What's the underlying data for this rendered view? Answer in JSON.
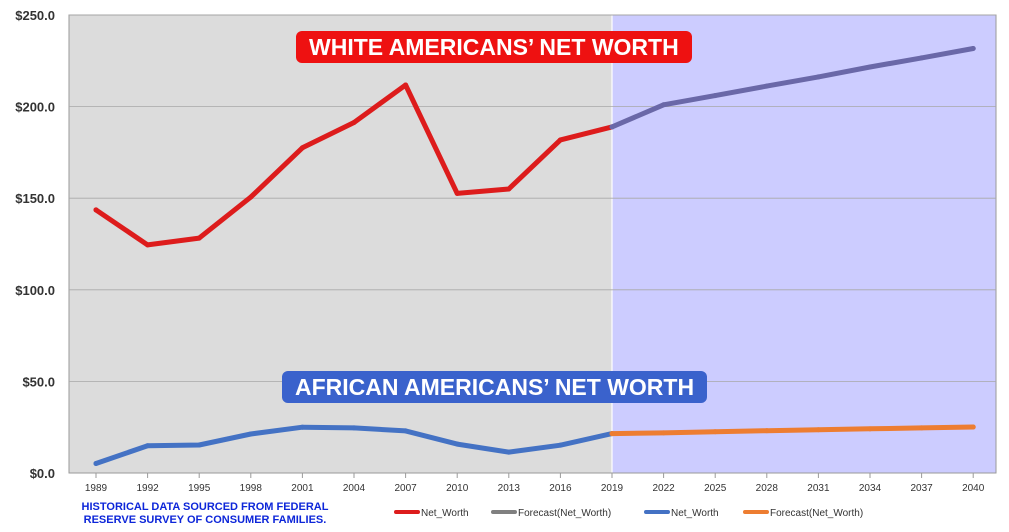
{
  "chart_data": {
    "type": "line",
    "title": "",
    "xlabel": "",
    "ylabel": "",
    "ylim": [
      0,
      250
    ],
    "y_ticks": [
      "$0.0",
      "$50.0",
      "$100.0",
      "$150.0",
      "$200.0",
      "$250.0"
    ],
    "x_ticks": [
      "1989",
      "1992",
      "1995",
      "1998",
      "2001",
      "2004",
      "2007",
      "2010",
      "2013",
      "2016",
      "2019",
      "2022",
      "2025",
      "2028",
      "2031",
      "2034",
      "2037",
      "2040"
    ],
    "shading": [
      {
        "name": "historical",
        "from": "1989",
        "to": "2019",
        "color": "#dcdcdc"
      },
      {
        "name": "forecast",
        "from": "2019",
        "to": "2040",
        "color": "#ccccff"
      }
    ],
    "series": [
      {
        "name": "Net_Worth",
        "group": "white",
        "color": "#dd1c1c",
        "x": [
          "1989",
          "1992",
          "1995",
          "1998",
          "2001",
          "2004",
          "2007",
          "2010",
          "2013",
          "2016",
          "2019"
        ],
        "values": [
          143.6,
          124.5,
          128.2,
          150.6,
          177.5,
          191.3,
          211.8,
          152.6,
          155.0,
          181.8,
          188.9
        ]
      },
      {
        "name": "Forecast(Net_Worth)",
        "group": "white",
        "color": "#6a68a8",
        "x": [
          "2019",
          "2022",
          "2025",
          "2028",
          "2031",
          "2034",
          "2037",
          "2040"
        ],
        "values": [
          188.9,
          201.0,
          206.0,
          211.2,
          216.2,
          221.6,
          226.6,
          231.7
        ]
      },
      {
        "name": "Net_Worth",
        "group": "black",
        "color": "#4472c4",
        "x": [
          "1989",
          "1992",
          "1995",
          "1998",
          "2001",
          "2004",
          "2007",
          "2010",
          "2013",
          "2016",
          "2019"
        ],
        "values": [
          5.2,
          14.9,
          15.3,
          21.3,
          25.0,
          24.6,
          23.0,
          15.8,
          11.4,
          15.2,
          21.5
        ]
      },
      {
        "name": "Forecast(Net_Worth)",
        "group": "black",
        "color": "#ed7d31",
        "x": [
          "2019",
          "2022",
          "2025",
          "2028",
          "2031",
          "2034",
          "2037",
          "2040"
        ],
        "values": [
          21.5,
          21.9,
          22.5,
          23.1,
          23.6,
          24.1,
          24.6,
          25.1
        ]
      }
    ],
    "legend": [
      {
        "label": "Net_Worth",
        "color": "#dd1c1c"
      },
      {
        "label": "Forecast(Net_Worth)",
        "color": "#808080"
      },
      {
        "label": "Net_Worth",
        "color": "#4472c4"
      },
      {
        "label": "Forecast(Net_Worth)",
        "color": "#ed7d31"
      }
    ],
    "annotations": {
      "white": "WHITE AMERICANS’ NET WORTH",
      "black": "AFRICAN AMERICANS’ NET WORTH"
    }
  },
  "footnote": {
    "line1": "HISTORICAL DATA SOURCED FROM FEDERAL",
    "line2": "RESERVE SURVEY OF CONSUMER FAMILIES."
  }
}
